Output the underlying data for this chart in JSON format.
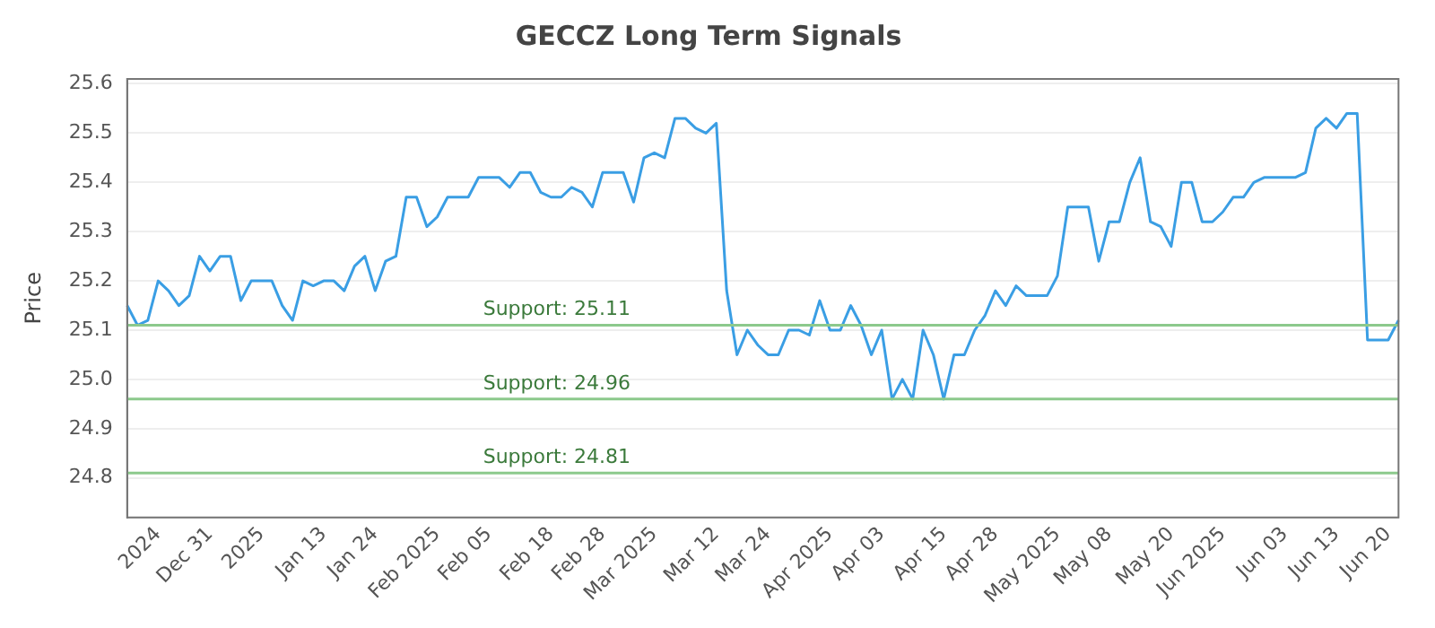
{
  "chart_data": {
    "type": "line",
    "title": "GECCZ Long Term Signals",
    "ylabel": "Price",
    "categories": [
      null,
      null,
      null,
      "2024",
      null,
      null,
      null,
      null,
      "Dec 31",
      null,
      null,
      null,
      null,
      "2025",
      null,
      null,
      null,
      null,
      null,
      "Jan 13",
      null,
      null,
      null,
      null,
      "Jan 24",
      null,
      null,
      null,
      null,
      null,
      "Feb 2025",
      null,
      null,
      null,
      null,
      "Feb 05",
      null,
      null,
      null,
      null,
      null,
      "Feb 18",
      null,
      null,
      null,
      null,
      "Feb 28",
      null,
      null,
      null,
      null,
      "Mar 2025",
      null,
      null,
      null,
      null,
      null,
      "Mar 12",
      null,
      null,
      null,
      null,
      "Mar 24",
      null,
      null,
      null,
      null,
      null,
      "Apr 2025",
      null,
      null,
      null,
      null,
      "Apr 03",
      null,
      null,
      null,
      null,
      null,
      "Apr 15",
      null,
      null,
      null,
      null,
      "Apr 28",
      null,
      null,
      null,
      null,
      null,
      "May 2025",
      null,
      null,
      null,
      null,
      "May 08",
      null,
      null,
      null,
      null,
      null,
      "May 20",
      null,
      null,
      null,
      null,
      "Jun 2025",
      null,
      null,
      null,
      null,
      null,
      "Jun 03",
      null,
      null,
      null,
      null,
      "Jun 13",
      null,
      null,
      null,
      null,
      "Jun 20",
      null
    ],
    "series": [
      {
        "color": "#3a9ee4",
        "values": [
          25.15,
          25.11,
          25.12,
          25.2,
          25.18,
          25.15,
          25.17,
          25.25,
          25.22,
          25.25,
          25.25,
          25.16,
          25.2,
          25.2,
          25.2,
          25.15,
          25.12,
          25.2,
          25.19,
          25.2,
          25.2,
          25.18,
          25.23,
          25.25,
          25.18,
          25.24,
          25.25,
          25.37,
          25.37,
          25.31,
          25.33,
          25.37,
          25.37,
          25.37,
          25.41,
          25.41,
          25.41,
          25.39,
          25.42,
          25.42,
          25.38,
          25.37,
          25.37,
          25.39,
          25.38,
          25.35,
          25.42,
          25.42,
          25.42,
          25.36,
          25.45,
          25.46,
          25.45,
          25.53,
          25.53,
          25.51,
          25.5,
          25.52,
          25.18,
          25.05,
          25.1,
          25.07,
          25.05,
          25.05,
          25.1,
          25.1,
          25.09,
          25.16,
          25.1,
          25.1,
          25.15,
          25.11,
          25.05,
          25.1,
          24.96,
          25.0,
          24.96,
          25.1,
          25.05,
          24.96,
          25.05,
          25.05,
          25.1,
          25.13,
          25.18,
          25.15,
          25.19,
          25.17,
          25.17,
          25.17,
          25.21,
          25.35,
          25.35,
          25.35,
          25.24,
          25.32,
          25.32,
          25.4,
          25.45,
          25.32,
          25.31,
          25.27,
          25.4,
          25.4,
          25.32,
          25.32,
          25.34,
          25.37,
          25.37,
          25.4,
          25.41,
          25.41,
          25.41,
          25.41,
          25.42,
          25.51,
          25.53,
          25.51,
          25.54,
          25.54,
          25.08,
          25.08,
          25.08,
          25.12
        ]
      }
    ],
    "ylim": [
      24.72,
      25.61
    ],
    "yticks": [
      24.8,
      24.9,
      {
        "value": 25.0,
        "label": "25.0"
      },
      25.1,
      25.2,
      25.3,
      25.4,
      25.5,
      25.6
    ],
    "ref_lines": [
      {
        "axis": "y",
        "value": 25.11,
        "label": "Support: 25.11",
        "color": "#8cc98c"
      },
      {
        "axis": "y",
        "value": 24.96,
        "label": "Support: 24.96",
        "color": "#8cc98c"
      },
      {
        "axis": "y",
        "value": 24.81,
        "label": "Support: 24.81",
        "color": "#8cc98c"
      }
    ],
    "grid": "y",
    "legend": false,
    "marker": "none",
    "line_style": "solid"
  }
}
